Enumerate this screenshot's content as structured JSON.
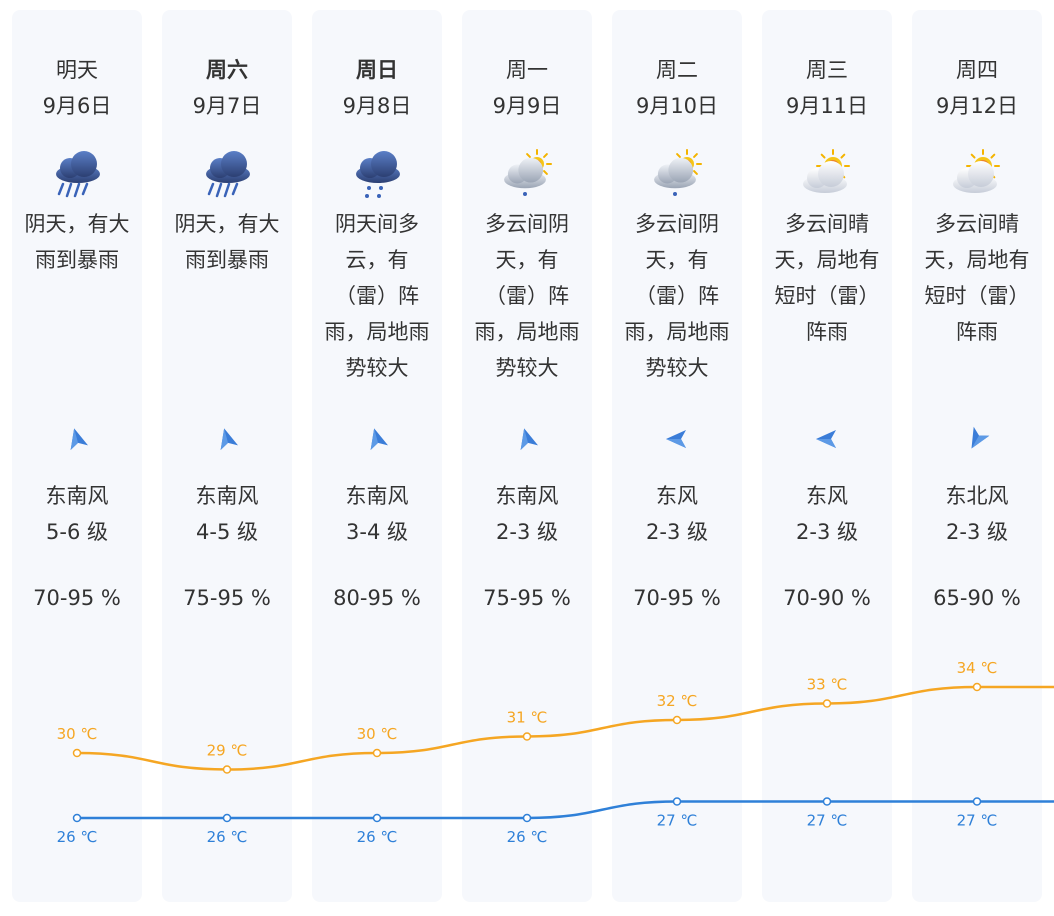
{
  "days": [
    {
      "dow": "明天",
      "date": "9月6日",
      "bold": false,
      "icon": "heavy-rain-icon",
      "weather": "阴天，有大雨到暴雨",
      "wind_dir_icon": "wind-arrow-icon",
      "wind_angle": -15,
      "wind": "东南风",
      "level": "5-6 级",
      "humidity": "70-95 %"
    },
    {
      "dow": "周六",
      "date": "9月7日",
      "bold": true,
      "icon": "heavy-rain-icon",
      "weather": "阴天，有大雨到暴雨",
      "wind_dir_icon": "wind-arrow-icon",
      "wind_angle": -15,
      "wind": "东南风",
      "level": "4-5 级",
      "humidity": "75-95 %"
    },
    {
      "dow": "周日",
      "date": "9月8日",
      "bold": true,
      "icon": "shower-icon",
      "weather": "阴天间多云，有（雷）阵雨，局地雨势较大",
      "wind_dir_icon": "wind-arrow-icon",
      "wind_angle": -15,
      "wind": "东南风",
      "level": "3-4 级",
      "humidity": "80-95 %"
    },
    {
      "dow": "周一",
      "date": "9月9日",
      "bold": false,
      "icon": "sun-cloud-rain-icon",
      "weather": "多云间阴天，有（雷）阵雨，局地雨势较大",
      "wind_dir_icon": "wind-arrow-icon",
      "wind_angle": -15,
      "wind": "东南风",
      "level": "2-3 级",
      "humidity": "75-95 %"
    },
    {
      "dow": "周二",
      "date": "9月10日",
      "bold": false,
      "icon": "sun-cloud-rain-icon",
      "weather": "多云间阴天，有（雷）阵雨，局地雨势较大",
      "wind_dir_icon": "wind-arrow-icon",
      "wind_angle": -90,
      "wind": "东风",
      "level": "2-3 级",
      "humidity": "70-95 %"
    },
    {
      "dow": "周三",
      "date": "9月11日",
      "bold": false,
      "icon": "partly-cloudy-icon",
      "weather": "多云间晴天，局地有短时（雷）阵雨",
      "wind_dir_icon": "wind-arrow-icon",
      "wind_angle": -90,
      "wind": "东风",
      "level": "2-3 级",
      "humidity": "70-90 %"
    },
    {
      "dow": "周四",
      "date": "9月12日",
      "bold": false,
      "icon": "partly-cloudy-icon",
      "weather": "多云间晴天，局地有短时（雷）阵雨",
      "wind_dir_icon": "wind-arrow-icon",
      "wind_angle": -150,
      "wind": "东北风",
      "level": "2-3 级",
      "humidity": "65-90 %"
    }
  ],
  "chart_data": {
    "type": "line",
    "categories": [
      "9月6日",
      "9月7日",
      "9月8日",
      "9月9日",
      "9月10日",
      "9月11日",
      "9月12日"
    ],
    "series": [
      {
        "values": [
          30,
          29,
          30,
          31,
          32,
          33,
          34
        ],
        "labels": [
          "30 ℃",
          "29 ℃",
          "30 ℃",
          "31 ℃",
          "32 ℃",
          "33 ℃",
          "34 ℃"
        ],
        "color": "#f5a623"
      },
      {
        "values": [
          26,
          26,
          26,
          26,
          27,
          27,
          27
        ],
        "labels": [
          "26 ℃",
          "26 ℃",
          "26 ℃",
          "26 ℃",
          "27 ℃",
          "27 ℃",
          "27 ℃"
        ],
        "color": "#2f80d8"
      }
    ]
  },
  "colors": {
    "high": "#f5a623",
    "low": "#2f80d8",
    "card": "#f6f8fc",
    "text": "#333333"
  }
}
